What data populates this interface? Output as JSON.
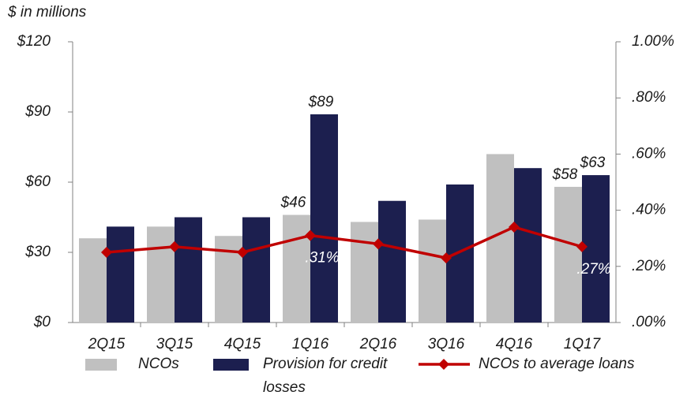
{
  "chart_data": {
    "type": "bar_line",
    "subtitle": "$ in millions",
    "categories": [
      "2Q15",
      "3Q15",
      "4Q15",
      "1Q16",
      "2Q16",
      "3Q16",
      "4Q16",
      "1Q17"
    ],
    "series": [
      {
        "name": "NCOs",
        "color": "#c0c0c0",
        "type": "bar",
        "values": [
          36,
          41,
          37,
          46,
          43,
          44,
          72,
          58
        ],
        "value_labels": [
          null,
          null,
          null,
          "$46",
          null,
          null,
          null,
          "$58"
        ]
      },
      {
        "name": "Provision for credit losses",
        "color": "#1c1f4f",
        "type": "bar",
        "values": [
          41,
          45,
          45,
          89,
          52,
          59,
          66,
          63
        ],
        "value_labels": [
          null,
          null,
          null,
          "$89",
          null,
          null,
          null,
          "$63"
        ]
      },
      {
        "name": "NCOs to average loans",
        "color": "#c00000",
        "type": "line",
        "axis": "y2",
        "values": [
          0.25,
          0.27,
          0.25,
          0.31,
          0.28,
          0.23,
          0.34,
          0.27
        ],
        "value_labels": [
          null,
          null,
          null,
          ".31%",
          null,
          null,
          null,
          ".27%"
        ]
      }
    ],
    "ylim": [
      0,
      120
    ],
    "yticks": [
      {
        "value": 0,
        "label": "$0"
      },
      {
        "value": 30,
        "label": "$30"
      },
      {
        "value": 60,
        "label": "$60"
      },
      {
        "value": 90,
        "label": "$90"
      },
      {
        "value": 120,
        "label": "$120"
      }
    ],
    "y2lim": [
      0,
      1
    ],
    "y2ticks": [
      {
        "value": 0,
        "label": ".00%"
      },
      {
        "value": 0.2,
        "label": ".20%"
      },
      {
        "value": 0.4,
        "label": ".40%"
      },
      {
        "value": 0.6,
        "label": ".60%"
      },
      {
        "value": 0.8,
        "label": ".80%"
      },
      {
        "value": 1,
        "label": "1.00%"
      }
    ]
  }
}
